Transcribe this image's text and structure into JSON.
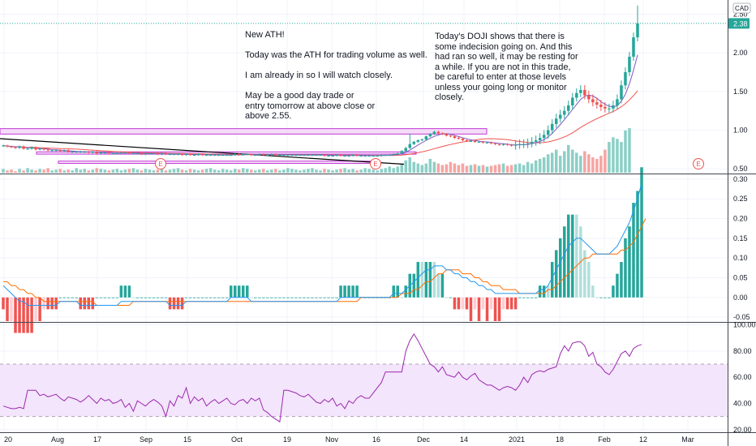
{
  "colors": {
    "up": "#26a69a",
    "down": "#ef5350",
    "vol_up": "#8ccfc6",
    "vol_down": "#f5a5a3",
    "ma_fast": "#7e57c2",
    "ma_slow": "#ef5350",
    "macd": "#2196f3",
    "signal": "#ff6d00",
    "rsi": "#9c27b0",
    "rsi_band": "#f3e5fb",
    "rect_fill": "#f3d2f7",
    "rect_stroke": "#c13ad4",
    "trend": "#000000",
    "grid": "#f0f3fa",
    "last_price": "#26a69a"
  },
  "annotations": {
    "note1": "New ATH!\n\nToday was the ATH for trading volume as well.\n\nI am already in so I will watch closely.\n\nMay be a good day trade or\nentry tomorrow at above close or\nabove 2.55.",
    "note2": "Today's DOJI shows that there is\nsome indecision going on. And this\nhad ran so well, it may be resting for\na while. If you are not in this trade,\nbe careful to enter at those levels\nunless your going long or monitor closely."
  },
  "currency": "CAD",
  "last_price_label": "2.38",
  "earnings_label": "E",
  "chart_data": [
    {
      "type": "candlestick",
      "pane": "price",
      "y_ticks": [
        "2.50",
        "2.00",
        "1.50",
        "1.00",
        "0.50"
      ],
      "ylim": [
        0.45,
        2.62
      ],
      "last_price": 2.38,
      "x_ticks": [
        "20",
        "Aug",
        "17",
        "Sep",
        "15",
        "Oct",
        "19",
        "Nov",
        "16",
        "Dec",
        "14",
        "2021",
        "18",
        "Feb",
        "12",
        "Mar"
      ],
      "earnings_markers": [
        {
          "date": "2020-09-05",
          "label": "E"
        },
        {
          "date": "2020-11-13",
          "label": "E"
        },
        {
          "date": "2021-03-05",
          "label": "E"
        }
      ],
      "close": [
        0.8,
        0.79,
        0.78,
        0.77,
        0.79,
        0.76,
        0.76,
        0.78,
        0.75,
        0.76,
        0.75,
        0.74,
        0.74,
        0.74,
        0.73,
        0.74,
        0.72,
        0.72,
        0.72,
        0.72,
        0.72,
        0.71,
        0.72,
        0.7,
        0.71,
        0.71,
        0.7,
        0.7,
        0.7,
        0.71,
        0.71,
        0.7,
        0.7,
        0.7,
        0.69,
        0.7,
        0.7,
        0.7,
        0.69,
        0.7,
        0.69,
        0.69,
        0.69,
        0.69,
        0.68,
        0.69,
        0.68,
        0.68,
        0.69,
        0.68,
        0.68,
        0.68,
        0.68,
        0.68,
        0.68,
        0.68,
        0.68,
        0.69,
        0.68,
        0.69,
        0.69,
        0.68,
        0.68,
        0.69,
        0.68,
        0.68,
        0.69,
        0.68,
        0.68,
        0.68,
        0.68,
        0.68,
        0.68,
        0.68,
        0.68,
        0.68,
        0.68,
        0.68,
        0.68,
        0.67,
        0.67,
        0.67,
        0.68,
        0.67,
        0.67,
        0.67,
        0.68,
        0.67,
        0.67,
        0.67,
        0.67,
        0.67,
        0.67,
        0.68,
        0.68,
        0.68,
        0.69,
        0.7,
        0.73,
        0.77,
        0.82,
        0.85,
        0.87,
        0.88,
        0.92,
        0.95,
        0.98,
        0.96,
        0.95,
        0.93,
        0.92,
        0.9,
        0.89,
        0.87,
        0.86,
        0.86,
        0.85,
        0.85,
        0.84,
        0.84,
        0.83,
        0.82,
        0.81,
        0.82,
        0.81,
        0.8,
        0.81,
        0.82,
        0.82,
        0.83,
        0.85,
        0.87,
        0.9,
        0.94,
        1.0,
        1.08,
        1.15,
        1.2,
        1.25,
        1.32,
        1.42,
        1.48,
        1.52,
        1.45,
        1.4,
        1.36,
        1.33,
        1.3,
        1.28,
        1.28,
        1.32,
        1.4,
        1.58,
        1.75,
        1.95,
        2.2,
        2.38
      ]
    },
    {
      "type": "line",
      "pane": "macd",
      "y_ticks": [
        "0.30",
        "0.25",
        "0.20",
        "0.15",
        "0.10",
        "0.05",
        "0.00",
        "-0.05"
      ],
      "ylim": [
        -0.06,
        0.31
      ],
      "series": [
        {
          "values": [
            0.03,
            0.02,
            0.01,
            0.0,
            -0.01,
            -0.01,
            -0.02,
            -0.02,
            -0.02,
            -0.02,
            -0.02,
            -0.02,
            -0.02,
            -0.02,
            -0.01,
            -0.01,
            -0.01,
            -0.01,
            -0.01,
            -0.02,
            -0.02,
            -0.02,
            -0.02,
            -0.02,
            -0.02,
            -0.02,
            -0.02,
            -0.02,
            -0.02,
            -0.01,
            -0.01,
            -0.01,
            -0.01,
            -0.01,
            -0.01,
            -0.01,
            -0.01,
            -0.01,
            -0.01,
            -0.01,
            -0.01,
            -0.02,
            -0.02,
            -0.02,
            -0.02,
            -0.01,
            -0.01,
            -0.01,
            -0.01,
            -0.01,
            -0.01,
            -0.01,
            -0.01,
            -0.01,
            -0.01,
            -0.01,
            0.0,
            0.0,
            0.0,
            0.0,
            0.0,
            -0.01,
            -0.01,
            -0.01,
            -0.01,
            -0.01,
            -0.01,
            -0.01,
            -0.01,
            -0.01,
            -0.01,
            -0.01,
            -0.01,
            -0.01,
            -0.01,
            -0.01,
            -0.01,
            -0.01,
            -0.01,
            -0.01,
            -0.01,
            -0.01,
            -0.01,
            0.0,
            0.0,
            0.0,
            0.0,
            0.0,
            0.0,
            0.0,
            0.0,
            0.0,
            0.0,
            0.0,
            0.0,
            0.0,
            0.01,
            0.01,
            0.01,
            0.02,
            0.03,
            0.04,
            0.05,
            0.06,
            0.07,
            0.07,
            0.08,
            0.08,
            0.08,
            0.07,
            0.07,
            0.06,
            0.06,
            0.05,
            0.05,
            0.04,
            0.04,
            0.03,
            0.03,
            0.02,
            0.02,
            0.01,
            0.01,
            0.01,
            0.01,
            0.01,
            0.01,
            0.01,
            0.01,
            0.01,
            0.01,
            0.01,
            0.02,
            0.02,
            0.03,
            0.05,
            0.07,
            0.09,
            0.11,
            0.13,
            0.14,
            0.15,
            0.15,
            0.14,
            0.13,
            0.12,
            0.11,
            0.11,
            0.11,
            0.11,
            0.12,
            0.13,
            0.15,
            0.17,
            0.19,
            0.22,
            0.25,
            0.29
          ]
        },
        {
          "values": [
            0.04,
            0.04,
            0.03,
            0.03,
            0.02,
            0.02,
            0.01,
            0.01,
            0.0,
            0.0,
            -0.01,
            -0.01,
            -0.01,
            -0.01,
            -0.01,
            -0.01,
            -0.01,
            -0.01,
            -0.01,
            -0.01,
            -0.01,
            -0.01,
            -0.01,
            -0.02,
            -0.02,
            -0.02,
            -0.02,
            -0.02,
            -0.02,
            -0.02,
            -0.02,
            -0.02,
            -0.01,
            -0.01,
            -0.01,
            -0.01,
            -0.01,
            -0.01,
            -0.01,
            -0.01,
            -0.01,
            -0.01,
            -0.01,
            -0.01,
            -0.01,
            -0.01,
            -0.01,
            -0.01,
            -0.01,
            -0.01,
            -0.01,
            -0.01,
            -0.01,
            -0.01,
            -0.01,
            -0.01,
            -0.01,
            -0.01,
            -0.01,
            -0.01,
            -0.01,
            -0.01,
            -0.01,
            -0.01,
            -0.01,
            -0.01,
            -0.01,
            -0.01,
            -0.01,
            -0.01,
            -0.01,
            -0.01,
            -0.01,
            -0.01,
            -0.01,
            -0.01,
            -0.01,
            -0.01,
            -0.01,
            -0.01,
            -0.01,
            -0.01,
            -0.01,
            -0.01,
            -0.01,
            -0.01,
            -0.01,
            -0.01,
            0.0,
            0.0,
            0.0,
            0.0,
            0.0,
            0.0,
            0.0,
            0.0,
            0.0,
            0.0,
            0.01,
            0.01,
            0.01,
            0.02,
            0.02,
            0.03,
            0.04,
            0.04,
            0.05,
            0.06,
            0.06,
            0.07,
            0.07,
            0.07,
            0.07,
            0.06,
            0.06,
            0.06,
            0.05,
            0.05,
            0.04,
            0.04,
            0.03,
            0.03,
            0.03,
            0.02,
            0.02,
            0.02,
            0.02,
            0.01,
            0.01,
            0.01,
            0.01,
            0.01,
            0.01,
            0.01,
            0.02,
            0.02,
            0.03,
            0.04,
            0.05,
            0.06,
            0.07,
            0.08,
            0.09,
            0.1,
            0.1,
            0.11,
            0.11,
            0.11,
            0.11,
            0.11,
            0.11,
            0.11,
            0.12,
            0.12,
            0.13,
            0.14,
            0.16,
            0.18,
            0.2
          ]
        }
      ]
    },
    {
      "type": "line",
      "pane": "rsi",
      "y_ticks": [
        "100.00",
        "80.00",
        "60.00",
        "40.00",
        "20.00"
      ],
      "ylim": [
        18,
        101
      ],
      "band": [
        30,
        70
      ],
      "values": [
        38,
        37,
        36,
        36,
        37,
        36,
        50,
        50,
        50,
        46,
        47,
        45,
        46,
        47,
        44,
        42,
        45,
        44,
        43,
        41,
        43,
        46,
        43,
        40,
        44,
        42,
        43,
        40,
        41,
        43,
        37,
        40,
        34,
        42,
        40,
        38,
        41,
        43,
        41,
        38,
        30,
        42,
        38,
        46,
        44,
        52,
        40,
        45,
        42,
        44,
        38,
        41,
        43,
        40,
        42,
        44,
        40,
        39,
        42,
        43,
        40,
        44,
        42,
        44,
        35,
        33,
        30,
        28,
        26,
        50,
        50,
        49,
        48,
        46,
        45,
        47,
        44,
        41,
        40,
        43,
        41,
        44,
        38,
        40,
        36,
        42,
        40,
        44,
        46,
        44,
        44,
        48,
        52,
        56,
        64,
        64,
        64,
        64,
        64,
        80,
        88,
        93,
        88,
        82,
        76,
        70,
        68,
        64,
        68,
        62,
        61,
        60,
        64,
        60,
        58,
        61,
        63,
        58,
        56,
        54,
        54,
        52,
        50,
        52,
        53,
        52,
        50,
        54,
        60,
        56,
        62,
        64,
        65,
        64,
        66,
        67,
        68,
        78,
        84,
        80,
        86,
        87,
        87,
        84,
        76,
        79,
        70,
        68,
        64,
        62,
        66,
        72,
        78,
        80,
        76,
        82,
        84,
        85
      ]
    },
    {
      "type": "bar",
      "pane": "volume",
      "values": [
        5,
        3,
        4,
        2,
        5,
        3,
        6,
        4,
        3,
        5,
        4,
        6,
        3,
        4,
        5,
        3,
        4,
        3,
        6,
        4,
        5,
        3,
        4,
        6,
        5,
        4,
        3,
        4,
        5,
        3,
        4,
        5,
        6,
        4,
        3,
        5,
        4,
        3,
        4,
        5,
        3,
        4,
        5,
        6,
        4,
        3,
        5,
        4,
        3,
        4,
        5,
        6,
        4,
        3,
        5,
        4,
        3,
        5,
        4,
        6,
        5,
        4,
        3,
        4,
        5,
        3,
        4,
        5,
        3,
        4,
        6,
        5,
        4,
        3,
        4,
        5,
        6,
        4,
        3,
        5,
        4,
        3,
        4,
        5,
        6,
        4,
        5,
        3,
        4,
        6,
        5,
        4,
        3,
        5,
        6,
        8,
        6,
        8,
        12,
        16,
        20,
        14,
        12,
        10,
        12,
        18,
        14,
        12,
        10,
        11,
        14,
        12,
        10,
        12,
        9,
        10,
        11,
        9,
        10,
        8,
        9,
        10,
        11,
        12,
        9,
        10,
        11,
        12,
        10,
        14,
        12,
        16,
        18,
        20,
        24,
        26,
        30,
        22,
        28,
        36,
        30,
        26,
        22,
        28,
        24,
        20,
        18,
        22,
        30,
        40,
        46,
        44,
        40,
        55,
        58
      ]
    }
  ]
}
